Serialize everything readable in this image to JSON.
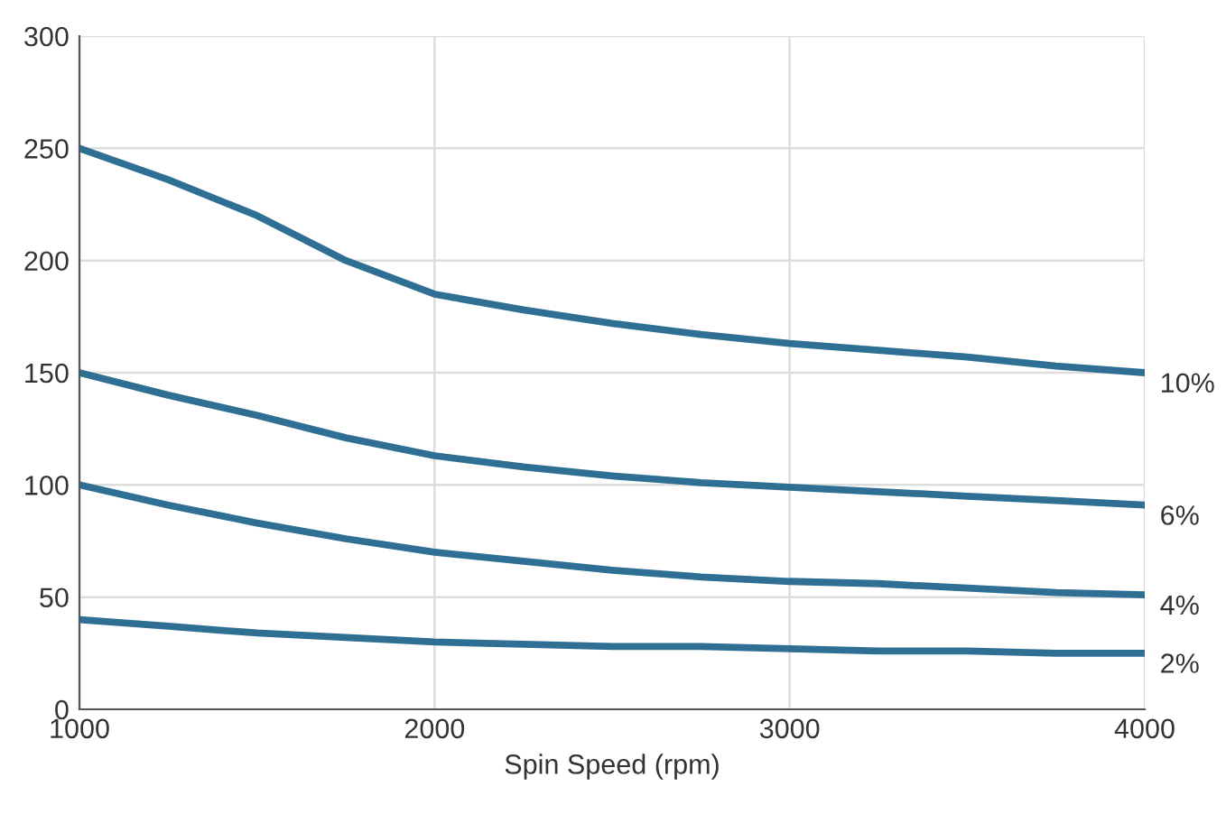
{
  "chart_data": {
    "type": "line",
    "xlabel": "Spin Speed (rpm)",
    "x": [
      1000,
      1250,
      1500,
      1750,
      2000,
      2250,
      2500,
      2750,
      3000,
      3250,
      3500,
      3750,
      4000
    ],
    "series": [
      {
        "name": "10%",
        "color": "#2f6f94",
        "values": [
          250,
          236,
          220,
          200,
          185,
          178,
          172,
          167,
          163,
          160,
          157,
          153,
          150
        ]
      },
      {
        "name": "6%",
        "color": "#2f6f94",
        "values": [
          150,
          140,
          131,
          121,
          113,
          108,
          104,
          101,
          99,
          97,
          95,
          93,
          91
        ]
      },
      {
        "name": "4%",
        "color": "#2f6f94",
        "values": [
          100,
          91,
          83,
          76,
          70,
          66,
          62,
          59,
          57,
          56,
          54,
          52,
          51
        ]
      },
      {
        "name": "2%",
        "color": "#2f6f94",
        "values": [
          40,
          37,
          34,
          32,
          30,
          29,
          28,
          28,
          27,
          26,
          26,
          25,
          25
        ]
      }
    ],
    "xlim": [
      1000,
      4000
    ],
    "xticks": [
      1000,
      2000,
      3000,
      4000
    ],
    "ylim": [
      0,
      300
    ],
    "yticks": [
      0,
      50,
      100,
      150,
      200,
      250,
      300
    ],
    "grid": true,
    "legend": false,
    "marker": "none",
    "line_style": "solid"
  }
}
